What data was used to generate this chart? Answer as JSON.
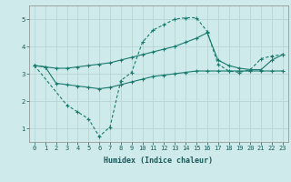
{
  "title": "",
  "xlabel": "Humidex (Indice chaleur)",
  "ylabel": "",
  "background_color": "#ceeaea",
  "line_color": "#1a7a6e",
  "grid_color": "#b8d4d4",
  "xlim": [
    -0.5,
    23.5
  ],
  "ylim": [
    0.5,
    5.5
  ],
  "yticks": [
    1,
    2,
    3,
    4,
    5
  ],
  "xticks": [
    0,
    1,
    2,
    3,
    4,
    5,
    6,
    7,
    8,
    9,
    10,
    11,
    12,
    13,
    14,
    15,
    16,
    17,
    18,
    19,
    20,
    21,
    22,
    23
  ],
  "line1_x": [
    0,
    1,
    2,
    3,
    4,
    5,
    6,
    7,
    8,
    9,
    10,
    11,
    12,
    13,
    14,
    15,
    16,
    17,
    18,
    19,
    20,
    21,
    22,
    23
  ],
  "line1_y": [
    3.3,
    3.25,
    3.2,
    3.2,
    3.25,
    3.3,
    3.35,
    3.4,
    3.5,
    3.6,
    3.7,
    3.8,
    3.9,
    4.0,
    4.15,
    4.3,
    4.5,
    3.5,
    3.3,
    3.2,
    3.15,
    3.15,
    3.5,
    3.7
  ],
  "line2_x": [
    0,
    1,
    2,
    3,
    4,
    5,
    6,
    7,
    8,
    9,
    10,
    11,
    12,
    13,
    14,
    15,
    16,
    17,
    18,
    19,
    20,
    21,
    22,
    23
  ],
  "line2_y": [
    3.3,
    3.25,
    2.65,
    2.6,
    2.55,
    2.5,
    2.45,
    2.5,
    2.6,
    2.7,
    2.8,
    2.9,
    2.95,
    3.0,
    3.05,
    3.1,
    3.1,
    3.1,
    3.1,
    3.1,
    3.1,
    3.1,
    3.1,
    3.1
  ],
  "line3_x": [
    0,
    3,
    4,
    5,
    6,
    7,
    8,
    9,
    10,
    11,
    12,
    13,
    14,
    15,
    16,
    17,
    18,
    19,
    20,
    21,
    22,
    23
  ],
  "line3_y": [
    3.3,
    1.85,
    1.6,
    1.35,
    0.7,
    1.05,
    2.75,
    3.05,
    4.15,
    4.6,
    4.8,
    5.0,
    5.05,
    5.05,
    4.55,
    3.35,
    3.1,
    3.05,
    3.15,
    3.55,
    3.65,
    3.7
  ]
}
